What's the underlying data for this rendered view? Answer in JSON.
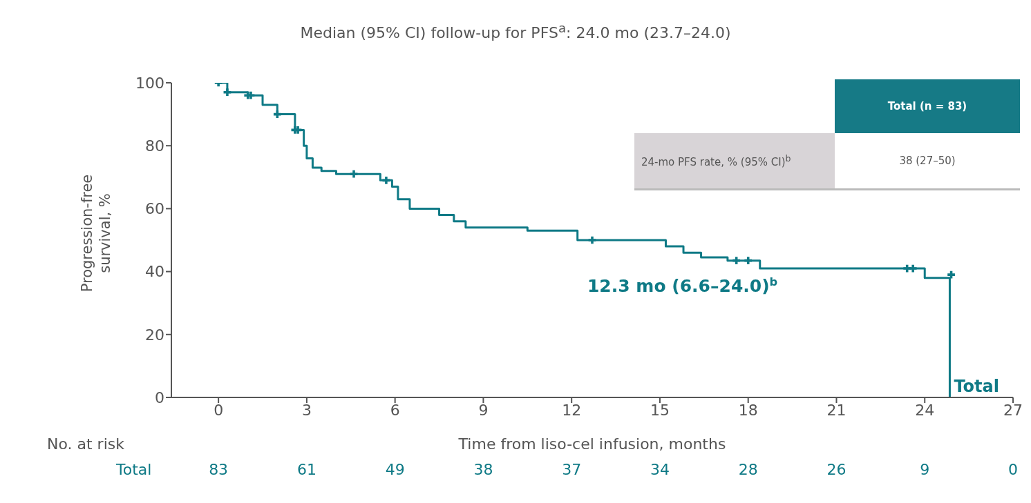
{
  "chart_data": {
    "type": "step",
    "subtitle": "Median (95% CI) follow-up for PFS$^{a}$: 24.0 mo (23.7–24.0)",
    "xlabel": "Time from liso-cel infusion, months",
    "ylabel": "Progression-free survival, %",
    "xlim": [
      -1.6,
      27
    ],
    "xticks": [
      0,
      3,
      6,
      9,
      12,
      15,
      18,
      21,
      24,
      27
    ],
    "ylim": [
      0,
      100
    ],
    "yticks": [
      0,
      20,
      40,
      60,
      80,
      100
    ],
    "grid": false,
    "legend": false,
    "line_style": "solid",
    "series": [
      {
        "name": "Total",
        "color": "#0f7a86",
        "x": [
          0,
          0.3,
          1.0,
          1.5,
          2.0,
          2.6,
          2.9,
          3.0,
          3.2,
          3.5,
          4.0,
          5.5,
          5.9,
          6.1,
          6.5,
          7.5,
          8.0,
          8.4,
          10.5,
          12.2,
          15.2,
          15.8,
          16.4,
          17.3,
          18.4,
          24.0,
          24.85
        ],
        "values": [
          100,
          97,
          96,
          93,
          90,
          85,
          80,
          76,
          73,
          72,
          71,
          69,
          67,
          63,
          60,
          58,
          56,
          54,
          53,
          50,
          48,
          46,
          44.5,
          43.5,
          41,
          38,
          0
        ]
      },
      {
        "type": "scatter",
        "marker": "cross",
        "color": "#0f7a86",
        "x": [
          0,
          0.3,
          1.0,
          1.1,
          2.0,
          2.6,
          2.7,
          4.6,
          5.7,
          12.7,
          17.6,
          18.0,
          23.4,
          23.6,
          24.9
        ],
        "values": [
          100,
          97,
          96,
          96,
          90,
          85,
          85,
          71,
          69,
          50,
          43.5,
          43.5,
          41,
          41,
          39
        ]
      }
    ],
    "annotations": [
      "12.3 mo (6.6–24.0)$^{b}$",
      "Total (n = 83)",
      "24-mo PFS rate, % (95% CI)$^{b}$",
      "38 (27–50)",
      "No. at risk",
      "Total",
      "83",
      "61",
      "49",
      "38",
      "37",
      "34",
      "28",
      "26",
      "9",
      "0"
    ]
  }
}
